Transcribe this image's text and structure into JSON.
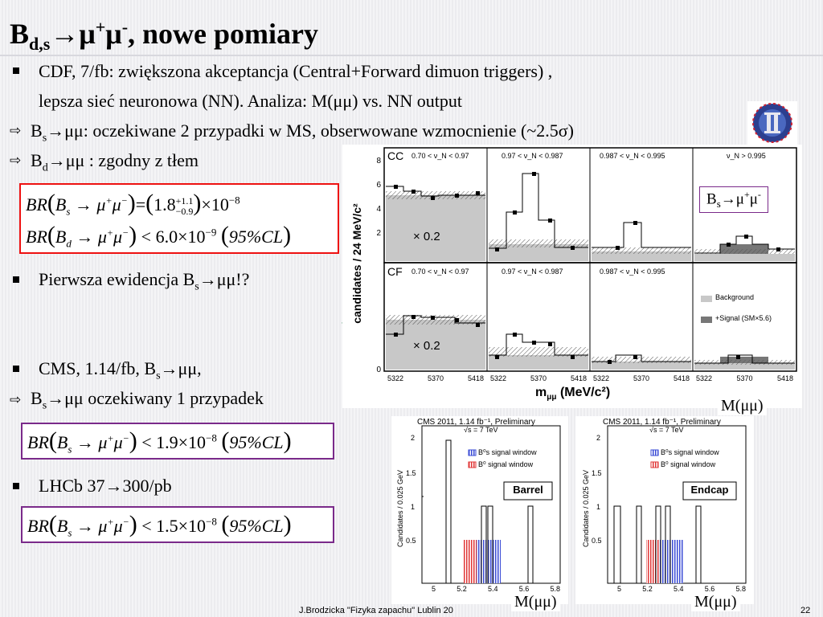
{
  "slide": {
    "title": {
      "pre": "B",
      "sub": "d,s",
      "arrow": "→μ",
      "sup1": "+",
      "mu2": "μ",
      "sup2": "-",
      "rest": ", nowe pomiary"
    },
    "bullets": {
      "cdf_line1": "CDF, 7/fb: zwiększona akceptancja (Central+Forward dimuon triggers) ,",
      "cdf_line2": "lepsza sieć neuronowa (NN). Analiza: M(μμ) vs. NN output",
      "bs_expect_pre": "B",
      "bs_expect_sub": "s",
      "bs_expect_rest": "→μμ: oczekiwane 2 przypadki w MS, obserwowane wzmocnienie (~2.5σ)",
      "bd_pre": "B",
      "bd_sub": "d",
      "bd_rest": "→μμ : zgodny z tłem",
      "first_evidence_pre": "Pierwsza ewidencja B",
      "first_evidence_sub": "s",
      "first_evidence_rest": "→μμ!?",
      "cms_pre": "CMS, 1.14/fb, B",
      "cms_sub": "s",
      "cms_rest": "→μμ,",
      "cms_expect_pre": "B",
      "cms_expect_sub": "s",
      "cms_expect_rest": "→μμ oczekiwany 1 przypadek",
      "lhcb": "LHCb 37→300/pb"
    },
    "formulas": {
      "bs_cdf": "BR(B_s → μ⁺μ⁻) = (1.8 +1.1 −0.9) × 10⁻⁸",
      "bd_cdf": "BR(B_d → μ⁺μ⁻) < 6.0 × 10⁻⁹ (95%CL)",
      "bs_cms": "BR(B_s → μ⁺μ⁻) < 1.9 × 10⁻⁸ (95%CL)",
      "bs_lhcb": "BR(B_s → μ⁺μ⁻) < 1.5 × 10⁻⁸ (95%CL)"
    },
    "formula_parts": {
      "cdf_bs_value": "1.8",
      "cdf_bs_up": "+1.1",
      "cdf_bs_down": "−0.9",
      "cdf_bs_exp": "−8",
      "cdf_bd_value": "6.0",
      "cdf_bd_exp": "−9",
      "cms_value": "1.9",
      "cms_exp": "−8",
      "lhcb_value": "1.5",
      "lhcb_exp": "−8",
      "cl": "95%CL"
    },
    "green_fragment": "t",
    "labels": {
      "mmu_cdf": "M(μμ)",
      "mmu_cms_left": "M(μμ)",
      "mmu_cms_right": "M(μμ)",
      "bs_label_pre": "B",
      "bs_label_sub": "s",
      "bs_label_rest": "→μ",
      "bs_label_sup1": "+",
      "bs_label_mu": "μ",
      "bs_label_sup2": "-"
    },
    "footer": {
      "author": "J.Brodzicka   \"Fizyka zapachu\"   Lublin 20",
      "page": "22"
    },
    "cdf_plot": {
      "ylabel": "candidates / 24 MeV/c²",
      "xlabel": "m",
      "xlabel_sub": "μμ",
      "xlabel_unit": "(MeV/c²)",
      "rows": [
        "CC",
        "CF"
      ],
      "nn_bins": [
        "0.70 < ν_N < 0.97",
        "0.97 < ν_N < 0.987",
        "0.987 < ν_N < 0.995",
        "ν_N > 0.995"
      ],
      "x_ticks": [
        "5322",
        "5370",
        "5418"
      ],
      "y_ticks": [
        "0",
        "2",
        "4",
        "6",
        "8"
      ],
      "scale_note": "× 0.2",
      "legend_background": "Background",
      "legend_signal": "+Signal (SM×5.6)"
    },
    "cms_plots": [
      {
        "header": "CMS 2011, 1.14 fb⁻¹, Preliminary",
        "energy": "√s = 7 TeV",
        "ylabel": "Candidates / 0.025 GeV",
        "legend_bs": "B⁰s signal window",
        "legend_b0": "B⁰ signal window",
        "region": "Barrel",
        "x_ticks": [
          "5",
          "5.2",
          "5.4",
          "5.6",
          "5.8"
        ],
        "y_ticks": [
          "0.5",
          "1",
          "1.5",
          "2"
        ]
      },
      {
        "header": "CMS 2011, 1.14 fb⁻¹, Preliminary",
        "energy": "√s = 7 TeV",
        "ylabel": "Candidates / 0.025 GeV",
        "legend_bs": "B⁰s signal window",
        "legend_b0": "B⁰ signal window",
        "region": "Endcap",
        "x_ticks": [
          "5",
          "5.2",
          "5.4",
          "5.6",
          "5.8"
        ],
        "y_ticks": [
          "0.5",
          "1",
          "1.5",
          "2"
        ]
      }
    ]
  }
}
